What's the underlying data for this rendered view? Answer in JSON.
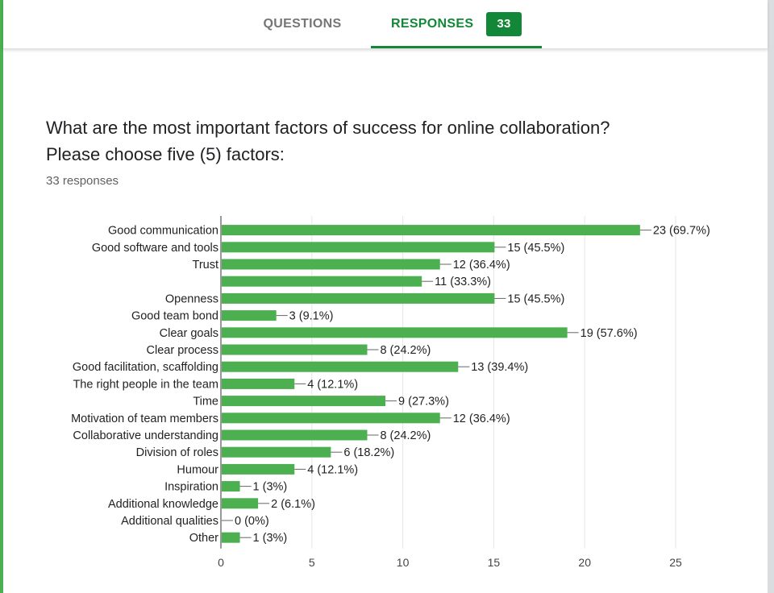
{
  "tabs": {
    "questions_label": "QUESTIONS",
    "responses_label": "RESPONSES",
    "responses_count": "33"
  },
  "question": {
    "title": "What are the most important factors of success for online collaboration? Please choose five (5) factors:",
    "response_count": "33 responses"
  },
  "colors": {
    "accent": "#118737",
    "bar": "#4caf50",
    "frame_left": "#4caf50"
  },
  "chart_data": {
    "type": "bar",
    "orientation": "horizontal",
    "categories": [
      "Good communication",
      "Good software and tools",
      "Trust",
      "",
      "Openness",
      "Good team bond",
      "Clear goals",
      "Clear process",
      "Good facilitation, scaffolding",
      "The right people in the team",
      "Time",
      "Motivation of team members",
      "Collaborative understanding",
      "Division of roles",
      "Humour",
      "Inspiration",
      "Additional knowledge",
      "Additional qualities",
      "Other"
    ],
    "values": [
      23,
      15,
      12,
      11,
      15,
      3,
      19,
      8,
      13,
      4,
      9,
      12,
      8,
      6,
      4,
      1,
      2,
      0,
      1
    ],
    "data_labels": [
      "23 (69.7%)",
      "15 (45.5%)",
      "12 (36.4%)",
      "11 (33.3%)",
      "15 (45.5%)",
      "3 (9.1%)",
      "19 (57.6%)",
      "8 (24.2%)",
      "13 (39.4%)",
      "4 (12.1%)",
      "9 (27.3%)",
      "12 (36.4%)",
      "8 (24.2%)",
      "6 (18.2%)",
      "4 (12.1%)",
      "1 (3%)",
      "2 (6.1%)",
      "0 (0%)",
      "1 (3%)"
    ],
    "xlim": [
      0,
      25
    ],
    "xticks": [
      0,
      5,
      10,
      15,
      20,
      25
    ],
    "grid": true,
    "legend": "none"
  }
}
